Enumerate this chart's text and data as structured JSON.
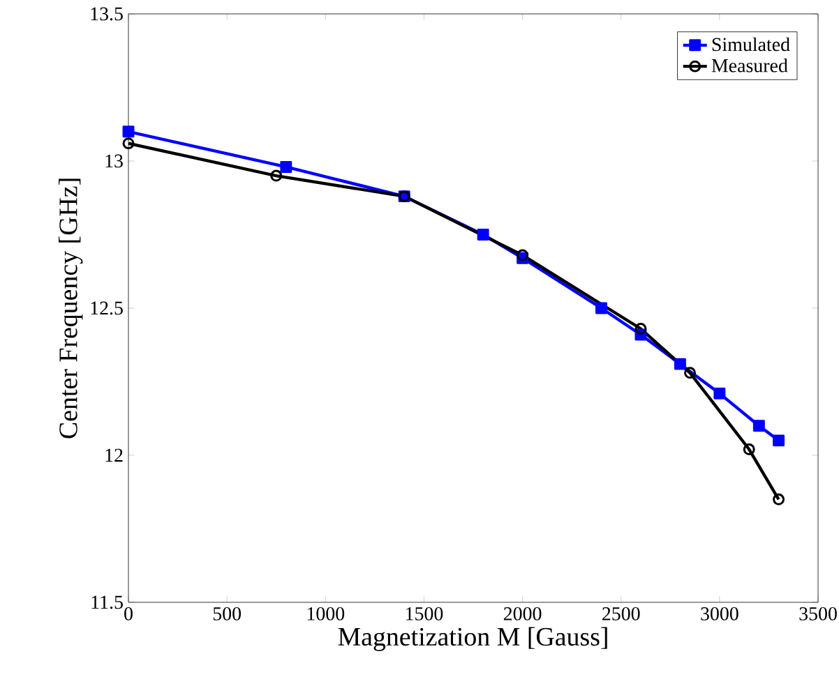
{
  "chart_data": {
    "type": "line",
    "xlabel": "Magnetization M [Gauss]",
    "ylabel": "Center Frequency [GHz]",
    "xlim": [
      0,
      3500
    ],
    "ylim": [
      11.5,
      13.5
    ],
    "xticks": [
      0,
      500,
      1000,
      1500,
      2000,
      2500,
      3000,
      3500
    ],
    "yticks": [
      11.5,
      12,
      12.5,
      13,
      13.5
    ],
    "grid": false,
    "legend": "top right",
    "line_style": "solid",
    "series": [
      {
        "name": "Simulated",
        "color": "#0000ff",
        "marker": "square",
        "x": [
          0,
          800,
          1400,
          1800,
          2000,
          2400,
          2600,
          2800,
          3000,
          3200,
          3300
        ],
        "values": [
          13.1,
          12.98,
          12.88,
          12.75,
          12.67,
          12.5,
          12.41,
          12.31,
          12.21,
          12.1,
          12.05
        ]
      },
      {
        "name": "Measured",
        "color": "#000000",
        "marker": "circle",
        "x": [
          0,
          750,
          1400,
          2000,
          2600,
          2850,
          3150,
          3300
        ],
        "values": [
          13.06,
          12.95,
          12.88,
          12.68,
          12.43,
          12.28,
          12.02,
          11.85
        ]
      }
    ]
  }
}
